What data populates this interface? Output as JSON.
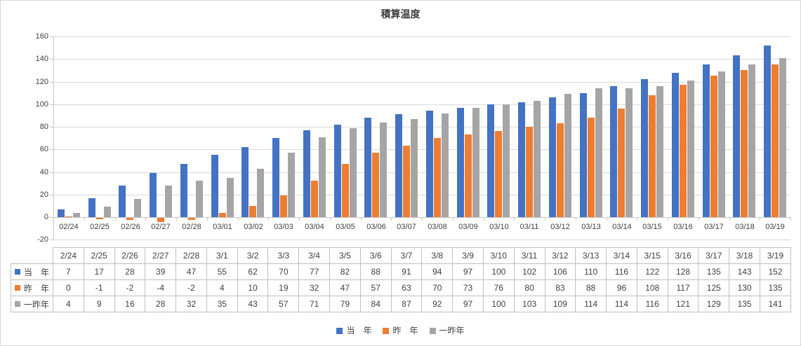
{
  "chart_data": {
    "type": "bar",
    "title": "積算温度",
    "categories": [
      "2/24",
      "2/25",
      "2/26",
      "2/27",
      "2/28",
      "3/1",
      "3/2",
      "3/3",
      "3/4",
      "3/5",
      "3/6",
      "3/7",
      "3/8",
      "3/9",
      "3/10",
      "3/11",
      "3/12",
      "3/13",
      "3/14",
      "3/15",
      "3/16",
      "3/17",
      "3/18",
      "3/19"
    ],
    "x_axis_labels": [
      "02/24",
      "02/25",
      "02/26",
      "02/27",
      "02/28",
      "03/01",
      "03/02",
      "03/03",
      "03/04",
      "03/05",
      "03/06",
      "03/07",
      "03/08",
      "03/09",
      "03/10",
      "03/11",
      "03/12",
      "03/13",
      "03/14",
      "03/15",
      "03/16",
      "03/17",
      "03/18",
      "03/19"
    ],
    "series": [
      {
        "name": "当　年",
        "color": "#4472C4",
        "values": [
          7,
          17,
          28,
          39,
          47,
          55,
          62,
          70,
          77,
          82,
          88,
          91,
          94,
          97,
          100,
          102,
          106,
          110,
          116,
          122,
          128,
          135,
          143,
          152
        ]
      },
      {
        "name": "昨　年",
        "color": "#ED7D31",
        "values": [
          0,
          -1,
          -2,
          -4,
          -2,
          4,
          10,
          19,
          32,
          47,
          57,
          63,
          70,
          73,
          76,
          80,
          83,
          88,
          96,
          108,
          117,
          125,
          130,
          135
        ]
      },
      {
        "name": "一昨年",
        "color": "#A5A5A5",
        "values": [
          4,
          9,
          16,
          28,
          32,
          35,
          43,
          57,
          71,
          79,
          84,
          87,
          92,
          97,
          100,
          103,
          109,
          114,
          114,
          116,
          121,
          129,
          135,
          141
        ]
      }
    ],
    "ylim": [
      -20,
      160
    ],
    "y_ticks": [
      160,
      140,
      120,
      100,
      80,
      60,
      40,
      20,
      0,
      -20
    ],
    "grid": true,
    "legend_position": "bottom",
    "data_table_shown": true,
    "colors": {
      "gridline": "#D9D9D9",
      "axis_line": "#C6C6C6",
      "text": "#404040",
      "table_border": "#BFBFBF",
      "background": "#FFFFFF"
    }
  }
}
